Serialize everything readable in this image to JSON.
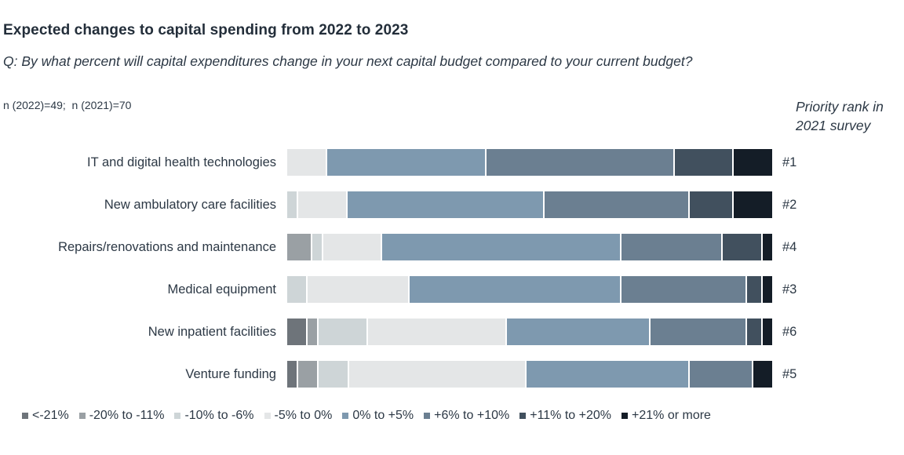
{
  "header": {
    "title": "Expected changes to capital spending from 2022 to 2023",
    "question": "Q: By what percent will capital expenditures change in your next capital budget compared to your current budget?",
    "sample_note": "n (2022)=49;  n (2021)=70"
  },
  "priority_header": "Priority rank in 2021 survey",
  "chart_data": {
    "type": "bar",
    "subtype": "horizontal_stacked_100_percent",
    "unit": "percent of respondents",
    "legend_position": "bottom",
    "axis_range": [
      0,
      100
    ],
    "grid": false,
    "segments": [
      {
        "label": "<-21%",
        "color": "#6e747a"
      },
      {
        "label": "-20% to -11%",
        "color": "#9aa0a4"
      },
      {
        "label": "-10% to -6%",
        "color": "#ced5d7"
      },
      {
        "label": "-5% to 0%",
        "color": "#e4e6e7"
      },
      {
        "label": "0% to +5%",
        "color": "#7e99af"
      },
      {
        "label": "+6% to +10%",
        "color": "#6b7f91"
      },
      {
        "label": "+11% to +20%",
        "color": "#41505e"
      },
      {
        "label": "+21% or more",
        "color": "#141d27"
      }
    ],
    "rows": [
      {
        "category": "IT and digital health technologies",
        "priority_rank": "#1",
        "values": [
          0,
          0,
          0,
          8,
          33,
          39,
          12,
          8
        ]
      },
      {
        "category": "New ambulatory care facilities",
        "priority_rank": "#2",
        "values": [
          0,
          0,
          2,
          10,
          41,
          30,
          9,
          8
        ]
      },
      {
        "category": "Repairs/renovations and maintenance",
        "priority_rank": "#4",
        "values": [
          0,
          5,
          2,
          12,
          50,
          21,
          8,
          2
        ]
      },
      {
        "category": "Medical equipment",
        "priority_rank": "#3",
        "values": [
          0,
          0,
          4,
          21,
          44,
          26,
          3,
          2
        ]
      },
      {
        "category": "New inpatient facilities",
        "priority_rank": "#6",
        "values": [
          4,
          2,
          10,
          29,
          30,
          20,
          3,
          2
        ]
      },
      {
        "category": "Venture funding",
        "priority_rank": "#5",
        "values": [
          2,
          4,
          6,
          37,
          34,
          13,
          0,
          4
        ]
      }
    ]
  }
}
